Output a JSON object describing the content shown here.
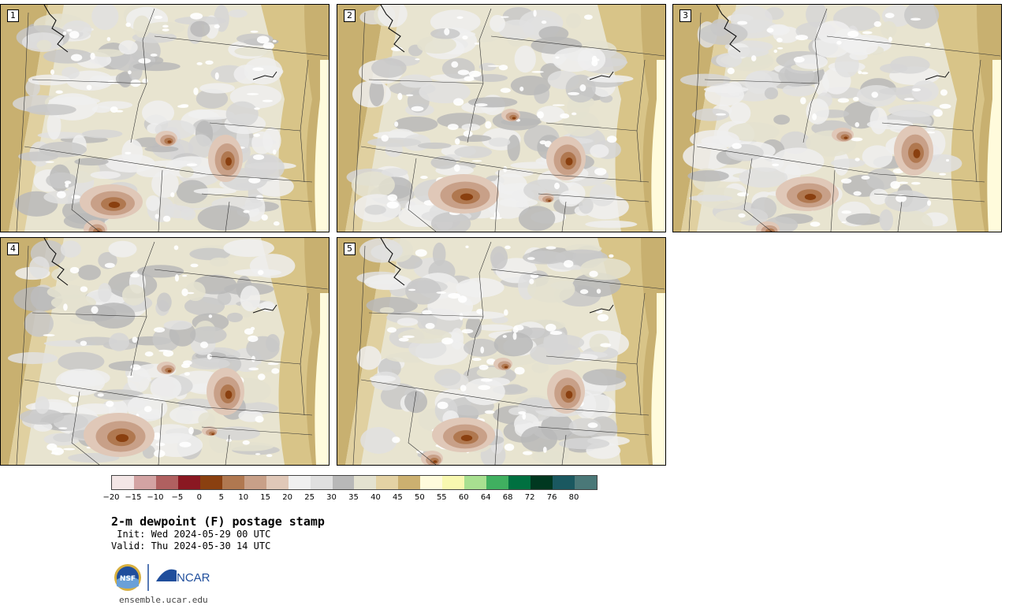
{
  "panels": [
    {
      "label": "1"
    },
    {
      "label": "2"
    },
    {
      "label": "3"
    },
    {
      "label": "4"
    },
    {
      "label": "5"
    }
  ],
  "colorbar": {
    "colors": [
      "#f3e6e6",
      "#d3a3a3",
      "#b06060",
      "#8a1822",
      "#8a4010",
      "#b07850",
      "#c8a088",
      "#e0c8b8",
      "#f0f0f0",
      "#e0e0e0",
      "#b8b8b8",
      "#e4e2d0",
      "#e4d2a4",
      "#ccb070",
      "#fffbdc",
      "#f8f8b0",
      "#a8e090",
      "#40b060",
      "#007040",
      "#003820",
      "#1a5860",
      "#4a7878"
    ],
    "ticks": [
      "−20",
      "−15",
      "−10",
      "−5",
      "0",
      "5",
      "10",
      "15",
      "20",
      "25",
      "30",
      "35",
      "40",
      "45",
      "50",
      "55",
      "60",
      "64",
      "68",
      "72",
      "76",
      "80"
    ]
  },
  "title": "2-m dewpoint (F) postage stamp",
  "init": " Init: Wed 2024-05-29 00 UTC",
  "valid": "Valid: Thu 2024-05-30 14 UTC",
  "logos": {
    "nsf": "NSF",
    "ncar": "NCAR"
  },
  "site": "ensemble.ucar.edu"
}
